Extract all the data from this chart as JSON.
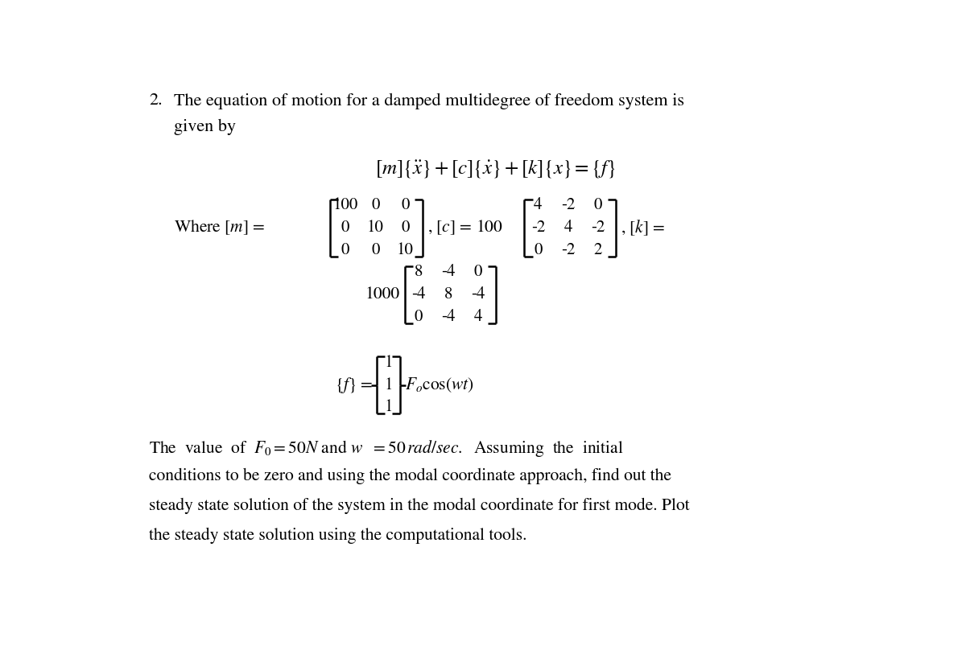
{
  "background_color": "#ffffff",
  "text_color": "#000000",
  "figsize": [
    12.0,
    8.13
  ],
  "dpi": 100,
  "font_size_title": 16,
  "font_size_body": 15.5,
  "font_size_eq": 17,
  "font_size_matrix": 15,
  "m_matrix": [
    [
      100,
      0,
      0
    ],
    [
      0,
      10,
      0
    ],
    [
      0,
      0,
      10
    ]
  ],
  "c_matrix": [
    [
      4,
      -2,
      0
    ],
    [
      -2,
      4,
      -2
    ],
    [
      0,
      -2,
      2
    ]
  ],
  "k_matrix": [
    [
      8,
      -4,
      0
    ],
    [
      -4,
      8,
      -4
    ],
    [
      0,
      -4,
      4
    ]
  ],
  "f_vector": [
    1,
    1,
    1
  ]
}
